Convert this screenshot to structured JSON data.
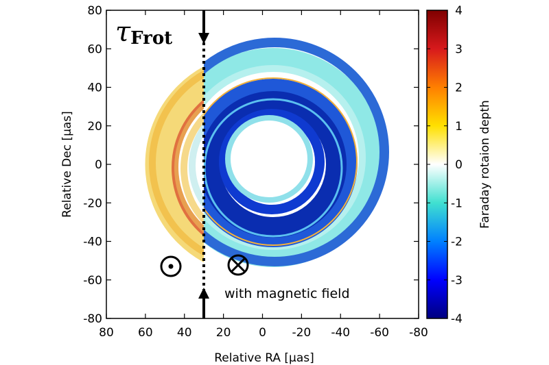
{
  "chart_data": {
    "type": "heatmap",
    "title": "τFrot",
    "title_symbol": "τ",
    "title_subscript": "Frot",
    "xlabel": "Relative RA [μas]",
    "ylabel": "Relative Dec [μas]",
    "xlim": [
      80,
      -80
    ],
    "ylim": [
      -80,
      80
    ],
    "x_ticks": [
      "80",
      "60",
      "40",
      "20",
      "0",
      "-20",
      "-40",
      "-60",
      "-80"
    ],
    "y_ticks": [
      "80",
      "60",
      "40",
      "20",
      "0",
      "-20",
      "-40",
      "-60",
      "-80"
    ],
    "colorbar": {
      "label": "Faraday rotaion depth",
      "range": [
        -4,
        4
      ],
      "ticks": [
        "4",
        "3",
        "2",
        "1",
        "0",
        "-1",
        "-2",
        "-3",
        "-4"
      ],
      "colormap": [
        "#00007f",
        "#0000ff",
        "#0080ff",
        "#40e0d0",
        "#ffffff",
        "#ffe000",
        "#ff8000",
        "#ff0000",
        "#7f0000"
      ]
    },
    "line_of_sight_x": 32,
    "ring": {
      "center": [
        0,
        0
      ],
      "inner_radius": 18,
      "outer_radius": 60
    },
    "regions": [
      {
        "name": "left side of line of sight",
        "sign": "positive",
        "typical_depth": 1
      },
      {
        "name": "right side of line of sight",
        "sign": "negative",
        "typical_depth": -3
      }
    ],
    "annotations": {
      "out_of_page_symbol": "⊙",
      "into_page_symbol": "⊗",
      "field_text": "with magnetic field"
    }
  }
}
